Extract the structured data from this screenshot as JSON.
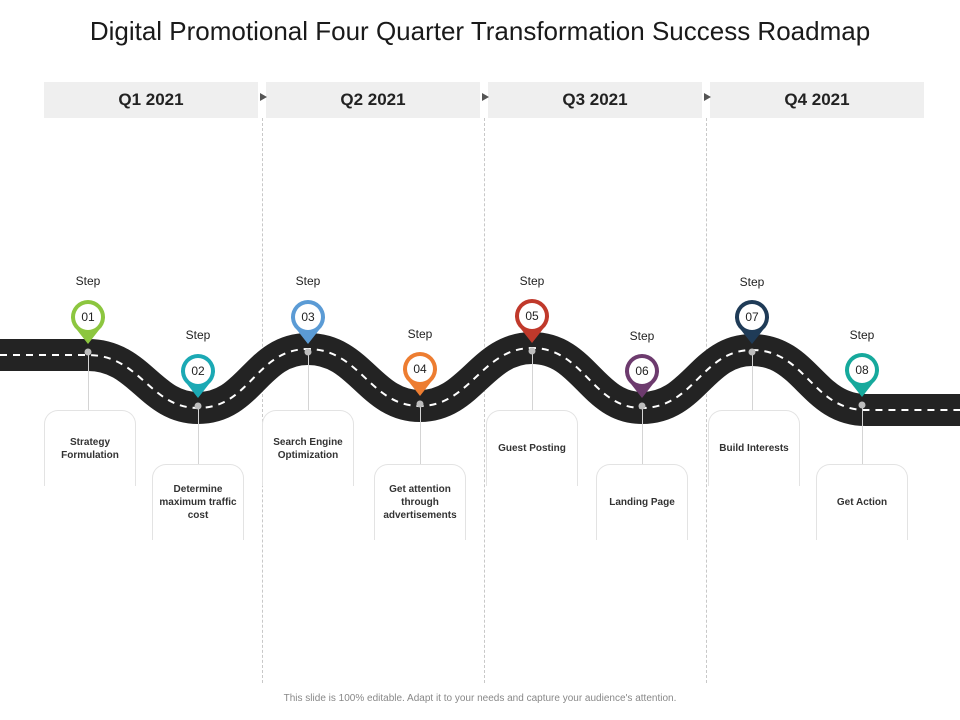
{
  "title": "Digital Promotional Four Quarter Transformation Success Roadmap",
  "quarters": [
    {
      "label": "Q1 2021"
    },
    {
      "label": "Q2 2021"
    },
    {
      "label": "Q3 2021"
    },
    {
      "label": "Q4 2021"
    }
  ],
  "step_word": "Step",
  "steps": [
    {
      "number": "01",
      "label": "Strategy Formulation",
      "color": "#8cc63f"
    },
    {
      "number": "02",
      "label": "Determine maximum traffic cost",
      "color": "#1ba9b4"
    },
    {
      "number": "03",
      "label": "Search Engine Optimization",
      "color": "#5b9bd5"
    },
    {
      "number": "04",
      "label": "Get attention through advertisements",
      "color": "#ed7d31"
    },
    {
      "number": "05",
      "label": "Guest Posting",
      "color": "#c0392b"
    },
    {
      "number": "06",
      "label": "Landing Page",
      "color": "#6d3b6e"
    },
    {
      "number": "07",
      "label": "Build Interests",
      "color": "#1f3b57"
    },
    {
      "number": "08",
      "label": "Get Action",
      "color": "#16a99c"
    }
  ],
  "footer": "This slide is 100% editable. Adapt it to your needs and capture your audience's attention."
}
